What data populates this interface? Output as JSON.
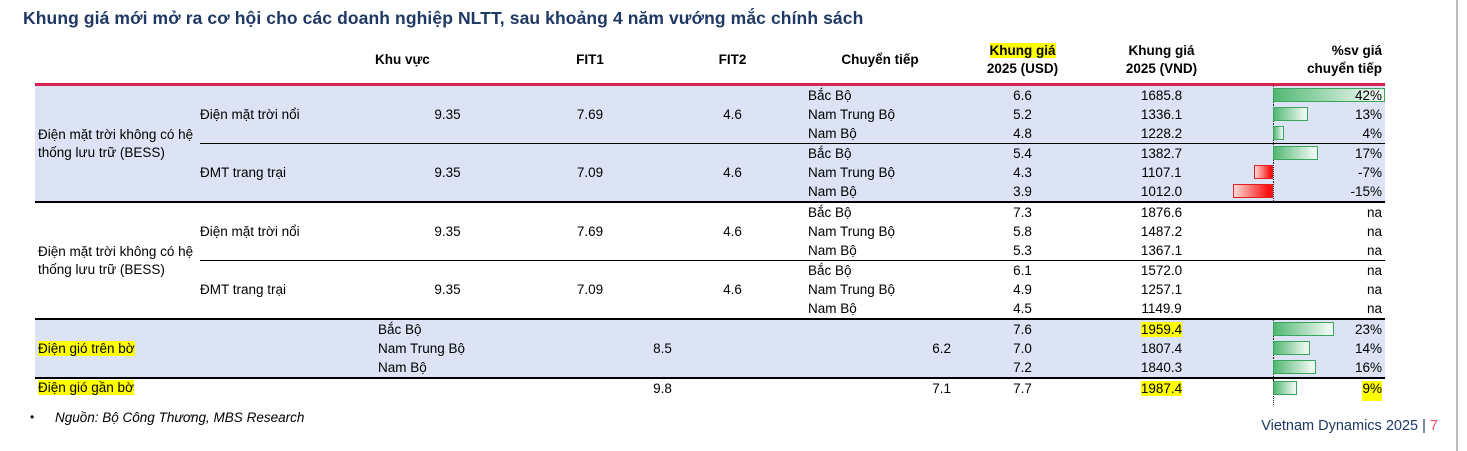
{
  "title": "Khung giá mới mở ra cơ hội cho các doanh nghiệp NLTT, sau khoảng 4 năm vướng mắc chính sách",
  "source_note": "Nguồn: Bộ Công Thương, MBS Research",
  "page_footer": {
    "label": "Vietnam Dynamics 2025 |",
    "page": "7"
  },
  "colors": {
    "title_blue": "#1f3864",
    "header_rule_red": "#d6224c",
    "row_shading": "#dbe3f4",
    "highlight_yellow": "#ffff00",
    "bar_positive_green": "#52b873",
    "bar_negative_red": "#fb1111",
    "page_number_red": "#ee4a6b"
  },
  "table": {
    "headers": {
      "khu_vuc": "Khu vực",
      "fit1": "FIT1",
      "fit2": "FIT2",
      "chuyen_tiep": "Chuyển tiếp",
      "usd_line1": "Khung giá",
      "usd_line2": "2025 (USD)",
      "vnd_line1": "Khung giá",
      "vnd_line2": "2025 (VND)",
      "pct_line1": "%sv giá",
      "pct_line2": "chuyển tiếp"
    },
    "pct_axis": {
      "min": -15,
      "max": 42
    },
    "groups": [
      {
        "label": "Điện mặt trời không có hệ thống lưu trữ (BESS)",
        "label_highlight": false,
        "shaded": true,
        "subgroups": [
          {
            "label": "Điện mặt trời nổi",
            "fit1": "9.35",
            "fit2": "7.69",
            "chuyen_tiep": "4.6",
            "rows": [
              {
                "region": "Bắc Bộ",
                "usd": "6.6",
                "vnd": "1685.8",
                "pct": "42%",
                "pct_value": 42
              },
              {
                "region": "Nam Trung Bộ",
                "usd": "5.2",
                "vnd": "1336.1",
                "pct": "13%",
                "pct_value": 13
              },
              {
                "region": "Nam Bộ",
                "usd": "4.8",
                "vnd": "1228.2",
                "pct": "4%",
                "pct_value": 4
              }
            ]
          },
          {
            "label": "ĐMT trang trại",
            "fit1": "9.35",
            "fit2": "7.09",
            "chuyen_tiep": "4.6",
            "rows": [
              {
                "region": "Bắc Bộ",
                "usd": "5.4",
                "vnd": "1382.7",
                "pct": "17%",
                "pct_value": 17
              },
              {
                "region": "Nam Trung Bộ",
                "usd": "4.3",
                "vnd": "1107.1",
                "pct": "-7%",
                "pct_value": -7
              },
              {
                "region": "Nam Bộ",
                "usd": "3.9",
                "vnd": "1012.0",
                "pct": "-15%",
                "pct_value": -15
              }
            ]
          }
        ]
      },
      {
        "label": "Điện mặt trời không có hệ thống lưu trữ (BESS)",
        "label_highlight": false,
        "shaded": false,
        "subgroups": [
          {
            "label": "Điện mặt trời nổi",
            "fit1": "9.35",
            "fit2": "7.69",
            "chuyen_tiep": "4.6",
            "rows": [
              {
                "region": "Bắc Bộ",
                "usd": "7.3",
                "vnd": "1876.6",
                "pct": "na",
                "pct_value": null
              },
              {
                "region": "Nam Trung Bộ",
                "usd": "5.8",
                "vnd": "1487.2",
                "pct": "na",
                "pct_value": null
              },
              {
                "region": "Nam Bộ",
                "usd": "5.3",
                "vnd": "1367.1",
                "pct": "na",
                "pct_value": null
              }
            ]
          },
          {
            "label": "ĐMT trang trại",
            "fit1": "9.35",
            "fit2": "7.09",
            "chuyen_tiep": "4.6",
            "rows": [
              {
                "region": "Bắc Bộ",
                "usd": "6.1",
                "vnd": "1572.0",
                "pct": "na",
                "pct_value": null
              },
              {
                "region": "Nam Trung Bộ",
                "usd": "4.9",
                "vnd": "1257.1",
                "pct": "na",
                "pct_value": null
              },
              {
                "region": "Nam Bộ",
                "usd": "4.5",
                "vnd": "1149.9",
                "pct": "na",
                "pct_value": null
              }
            ]
          }
        ]
      },
      {
        "label": "Điện gió trên bờ",
        "label_highlight": true,
        "shaded": true,
        "merged_fit": "8.5",
        "chuyen_tiep": "6.2",
        "rows": [
          {
            "region": "Bắc Bộ",
            "usd": "7.6",
            "vnd": "1959.4",
            "vnd_highlight": true,
            "pct": "23%",
            "pct_value": 23
          },
          {
            "region": "Nam Trung Bộ",
            "usd": "7.0",
            "vnd": "1807.4",
            "vnd_highlight": false,
            "pct": "14%",
            "pct_value": 14
          },
          {
            "region": "Nam Bộ",
            "usd": "7.2",
            "vnd": "1840.3",
            "vnd_highlight": false,
            "pct": "16%",
            "pct_value": 16
          }
        ]
      },
      {
        "label": "Điện gió gần bờ",
        "label_highlight": true,
        "shaded": false,
        "merged_fit": "9.8",
        "chuyen_tiep": "7.1",
        "rows": [
          {
            "region": "",
            "usd": "7.7",
            "vnd": "1987.4",
            "vnd_highlight": true,
            "pct": "9%",
            "pct_value": 9,
            "pct_highlight": true
          }
        ]
      }
    ]
  }
}
